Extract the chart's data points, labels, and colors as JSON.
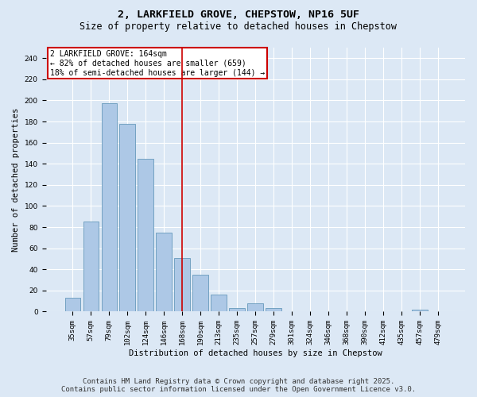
{
  "title": "2, LARKFIELD GROVE, CHEPSTOW, NP16 5UF",
  "subtitle": "Size of property relative to detached houses in Chepstow",
  "xlabel": "Distribution of detached houses by size in Chepstow",
  "ylabel": "Number of detached properties",
  "categories": [
    "35sqm",
    "57sqm",
    "79sqm",
    "102sqm",
    "124sqm",
    "146sqm",
    "168sqm",
    "190sqm",
    "213sqm",
    "235sqm",
    "257sqm",
    "279sqm",
    "301sqm",
    "324sqm",
    "346sqm",
    "368sqm",
    "390sqm",
    "412sqm",
    "435sqm",
    "457sqm",
    "479sqm"
  ],
  "values": [
    13,
    85,
    197,
    178,
    145,
    75,
    51,
    35,
    16,
    3,
    8,
    3,
    0,
    0,
    0,
    0,
    0,
    0,
    0,
    2,
    0
  ],
  "bar_color": "#adc8e6",
  "bar_edge_color": "#6699bb",
  "vline_x": 6,
  "vline_label": "2 LARKFIELD GROVE: 164sqm",
  "annotation_line1": "← 82% of detached houses are smaller (659)",
  "annotation_line2": "18% of semi-detached houses are larger (144) →",
  "annotation_box_color": "#ffffff",
  "annotation_box_edge": "#cc0000",
  "vline_color": "#cc0000",
  "ylim": [
    0,
    250
  ],
  "yticks": [
    0,
    20,
    40,
    60,
    80,
    100,
    120,
    140,
    160,
    180,
    200,
    220,
    240
  ],
  "footer_line1": "Contains HM Land Registry data © Crown copyright and database right 2025.",
  "footer_line2": "Contains public sector information licensed under the Open Government Licence v3.0.",
  "bg_color": "#dce8f5",
  "plot_bg_color": "#dce8f5",
  "grid_color": "#ffffff",
  "title_fontsize": 9.5,
  "subtitle_fontsize": 8.5,
  "axis_label_fontsize": 7.5,
  "tick_fontsize": 6.5,
  "annot_fontsize": 7,
  "footer_fontsize": 6.5
}
